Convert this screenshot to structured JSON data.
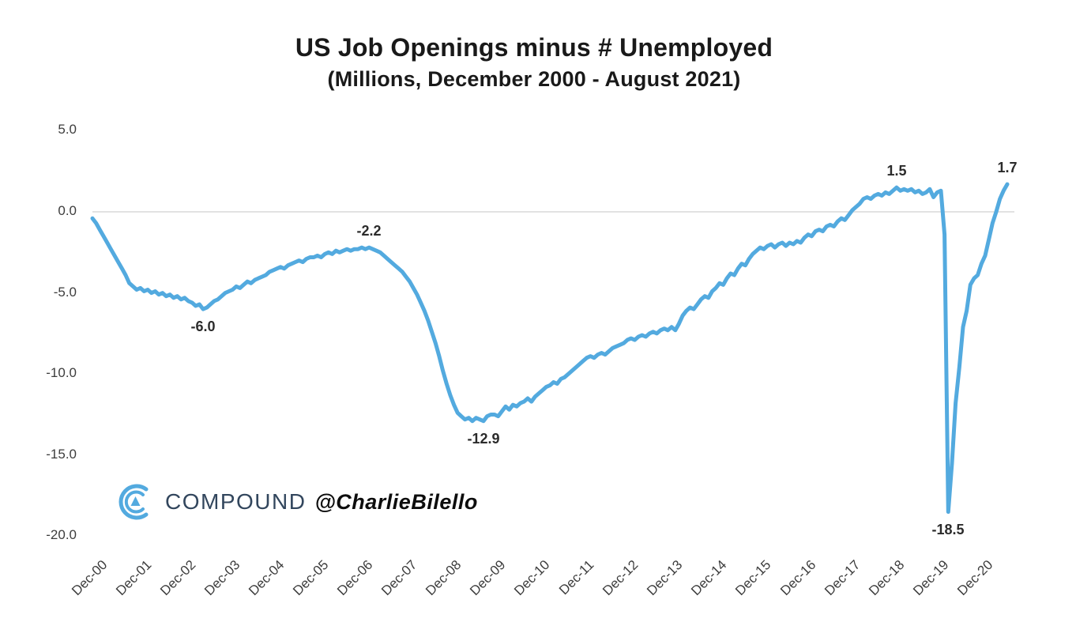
{
  "page": {
    "background": "#ffffff"
  },
  "title": {
    "line1": "US Job Openings minus # Unemployed",
    "line2": "(Millions, December 2000 - August 2021)"
  },
  "watermark": {
    "brand": "COMPOUND",
    "handle": "@CharlieBilello",
    "logo_icon": "compound-c-logo",
    "logo_color": "#53aadf",
    "brand_color": "#32465d"
  },
  "chart_data": {
    "type": "line",
    "title": "US Job Openings minus # Unemployed",
    "subtitle": "(Millions, December 2000 - August 2021)",
    "x_unit": "month",
    "x_start": "Dec-2000",
    "x_end": "Aug-2021",
    "ylim": [
      -20,
      5
    ],
    "ytick_labels": [
      "5.0",
      "0.0",
      "-5.0",
      "-10.0",
      "-15.0",
      "-20.0"
    ],
    "ytick_values": [
      5,
      0,
      -5,
      -10,
      -15,
      -20
    ],
    "xtick_labels": [
      "Dec-00",
      "Dec-01",
      "Dec-02",
      "Dec-03",
      "Dec-04",
      "Dec-05",
      "Dec-06",
      "Dec-07",
      "Dec-08",
      "Dec-09",
      "Dec-10",
      "Dec-11",
      "Dec-12",
      "Dec-13",
      "Dec-14",
      "Dec-15",
      "Dec-16",
      "Dec-17",
      "Dec-18",
      "Dec-19",
      "Dec-20"
    ],
    "xtick_interval_months": 12,
    "gridline_values": [
      0
    ],
    "gridline_color": "#d9d9d9",
    "line_color": "#53aadf",
    "legend": "none",
    "values": [
      -0.4,
      -0.7,
      -1.1,
      -1.5,
      -1.9,
      -2.3,
      -2.7,
      -3.1,
      -3.5,
      -3.9,
      -4.4,
      -4.6,
      -4.8,
      -4.7,
      -4.9,
      -4.8,
      -5.0,
      -4.9,
      -5.1,
      -5.0,
      -5.2,
      -5.1,
      -5.3,
      -5.2,
      -5.4,
      -5.3,
      -5.5,
      -5.6,
      -5.8,
      -5.7,
      -6.0,
      -5.9,
      -5.7,
      -5.5,
      -5.4,
      -5.2,
      -5.0,
      -4.9,
      -4.8,
      -4.6,
      -4.7,
      -4.5,
      -4.3,
      -4.4,
      -4.2,
      -4.1,
      -4.0,
      -3.9,
      -3.7,
      -3.6,
      -3.5,
      -3.4,
      -3.5,
      -3.3,
      -3.2,
      -3.1,
      -3.0,
      -3.1,
      -2.9,
      -2.8,
      -2.8,
      -2.7,
      -2.8,
      -2.6,
      -2.5,
      -2.6,
      -2.4,
      -2.5,
      -2.4,
      -2.3,
      -2.4,
      -2.3,
      -2.3,
      -2.2,
      -2.3,
      -2.2,
      -2.3,
      -2.4,
      -2.5,
      -2.7,
      -2.9,
      -3.1,
      -3.3,
      -3.5,
      -3.7,
      -4.0,
      -4.3,
      -4.7,
      -5.1,
      -5.6,
      -6.1,
      -6.7,
      -7.4,
      -8.1,
      -8.9,
      -9.8,
      -10.6,
      -11.3,
      -11.9,
      -12.4,
      -12.6,
      -12.8,
      -12.7,
      -12.9,
      -12.7,
      -12.8,
      -12.9,
      -12.6,
      -12.5,
      -12.5,
      -12.6,
      -12.3,
      -12.0,
      -12.2,
      -11.9,
      -12.0,
      -11.8,
      -11.7,
      -11.5,
      -11.7,
      -11.4,
      -11.2,
      -11.0,
      -10.8,
      -10.7,
      -10.5,
      -10.6,
      -10.3,
      -10.2,
      -10.0,
      -9.8,
      -9.6,
      -9.4,
      -9.2,
      -9.0,
      -8.9,
      -9.0,
      -8.8,
      -8.7,
      -8.8,
      -8.6,
      -8.4,
      -8.3,
      -8.2,
      -8.1,
      -7.9,
      -7.8,
      -7.9,
      -7.7,
      -7.6,
      -7.7,
      -7.5,
      -7.4,
      -7.5,
      -7.3,
      -7.2,
      -7.3,
      -7.1,
      -7.3,
      -6.9,
      -6.4,
      -6.1,
      -5.9,
      -6.0,
      -5.7,
      -5.4,
      -5.2,
      -5.3,
      -4.9,
      -4.7,
      -4.4,
      -4.5,
      -4.1,
      -3.8,
      -3.9,
      -3.5,
      -3.2,
      -3.3,
      -2.9,
      -2.6,
      -2.4,
      -2.2,
      -2.3,
      -2.1,
      -2.0,
      -2.2,
      -2.0,
      -1.9,
      -2.1,
      -1.9,
      -2.0,
      -1.8,
      -1.9,
      -1.6,
      -1.4,
      -1.5,
      -1.2,
      -1.1,
      -1.2,
      -0.9,
      -0.8,
      -0.9,
      -0.6,
      -0.4,
      -0.5,
      -0.2,
      0.1,
      0.3,
      0.5,
      0.8,
      0.9,
      0.8,
      1.0,
      1.1,
      1.0,
      1.2,
      1.1,
      1.3,
      1.5,
      1.3,
      1.4,
      1.3,
      1.4,
      1.2,
      1.3,
      1.1,
      1.2,
      1.4,
      0.9,
      1.2,
      1.3,
      -1.4,
      -18.5,
      -15.5,
      -11.8,
      -9.6,
      -7.1,
      -6.1,
      -4.5,
      -4.1,
      -3.9,
      -3.2,
      -2.7,
      -1.7,
      -0.7,
      0.0,
      0.8,
      1.3,
      1.7
    ],
    "annotations": [
      {
        "text": "-2.2",
        "month": 75,
        "value": -2.2,
        "placement": "above"
      },
      {
        "text": "-6.0",
        "month": 30,
        "value": -6.0,
        "placement": "below"
      },
      {
        "text": "-12.9",
        "month": 106,
        "value": -12.9,
        "placement": "below"
      },
      {
        "text": "1.5",
        "month": 218,
        "value": 1.5,
        "placement": "above"
      },
      {
        "text": "-18.5",
        "month": 232,
        "value": -18.5,
        "placement": "below"
      },
      {
        "text": "1.7",
        "month": 248,
        "value": 1.7,
        "placement": "above"
      }
    ]
  }
}
